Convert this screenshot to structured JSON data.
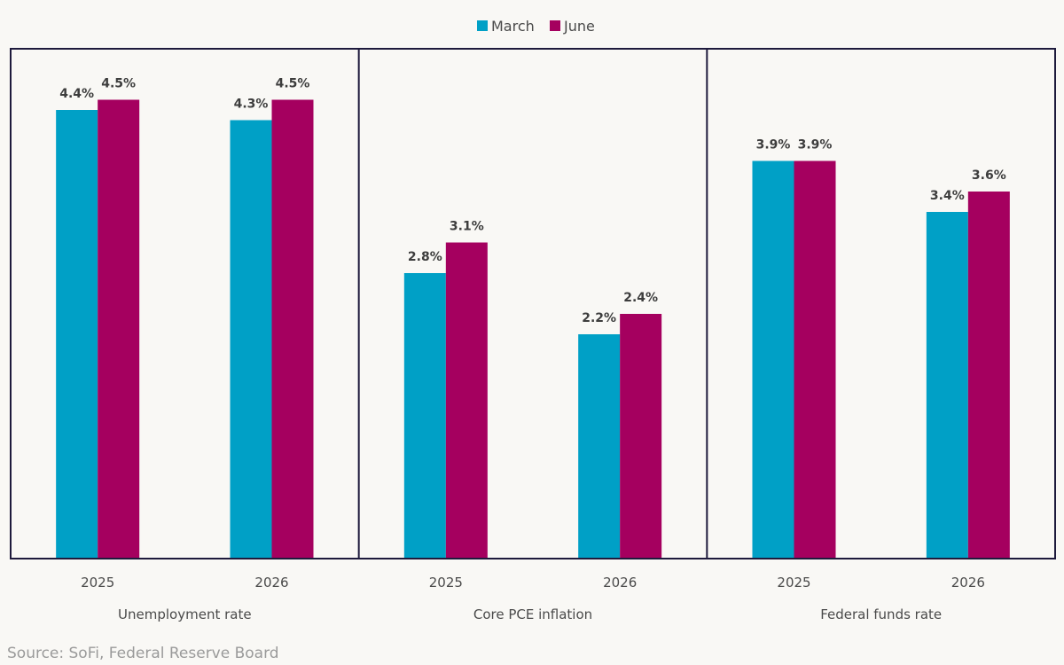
{
  "chart_data": {
    "type": "bar",
    "title": "",
    "legend": {
      "position": "top-center",
      "entries": [
        {
          "name": "March",
          "color": "#00a0c6"
        },
        {
          "name": "June",
          "color": "#a5005f"
        }
      ]
    },
    "ylim": [
      0,
      5
    ],
    "grid": false,
    "value_suffix": "%",
    "panels": [
      {
        "label": "Unemployment rate",
        "categories": [
          "2025",
          "2026"
        ],
        "series": [
          {
            "name": "March",
            "values": [
              4.4,
              4.3
            ]
          },
          {
            "name": "June",
            "values": [
              4.5,
              4.5
            ]
          }
        ]
      },
      {
        "label": "Core PCE inflation",
        "categories": [
          "2025",
          "2026"
        ],
        "series": [
          {
            "name": "March",
            "values": [
              2.8,
              2.2
            ]
          },
          {
            "name": "June",
            "values": [
              3.1,
              2.4
            ]
          }
        ]
      },
      {
        "label": "Federal funds rate",
        "categories": [
          "2025",
          "2026"
        ],
        "series": [
          {
            "name": "March",
            "values": [
              3.9,
              3.4
            ]
          },
          {
            "name": "June",
            "values": [
              3.9,
              3.6
            ]
          }
        ]
      }
    ]
  },
  "source": "Source: SoFi, Federal Reserve Board",
  "colors": {
    "border": "#1e1a3c",
    "background": "#f9f8f5"
  }
}
